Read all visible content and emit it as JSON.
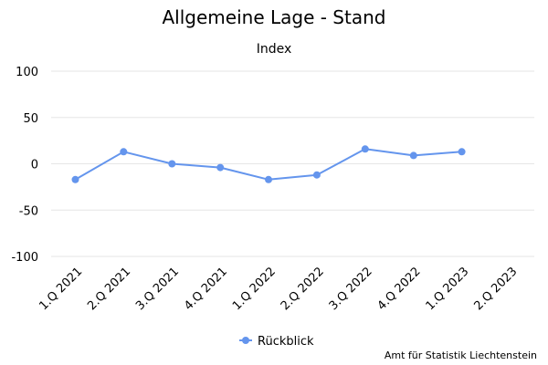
{
  "chart_data": {
    "type": "line",
    "title": "Allgemeine Lage - Stand",
    "ylabel": "Index",
    "categories": [
      "1.Q 2021",
      "2.Q 2021",
      "3.Q 2021",
      "4.Q 2021",
      "1.Q 2022",
      "2.Q 2022",
      "3.Q 2022",
      "4.Q 2022",
      "1.Q 2023",
      "2.Q 2023"
    ],
    "ylim": [
      -100,
      100
    ],
    "yticks": [
      "100",
      "50",
      "0",
      "-50",
      "-100"
    ],
    "ytick_values": [
      100,
      50,
      0,
      -50,
      -100
    ],
    "series": [
      {
        "name": "Rückblick",
        "color": "#6495ed",
        "values": [
          -17,
          13,
          0,
          -4,
          -17,
          -12,
          16,
          9,
          13,
          null
        ]
      }
    ],
    "legend": "bottom-center",
    "grid": true
  },
  "credits": "Amt für Statistik Liechtenstein"
}
